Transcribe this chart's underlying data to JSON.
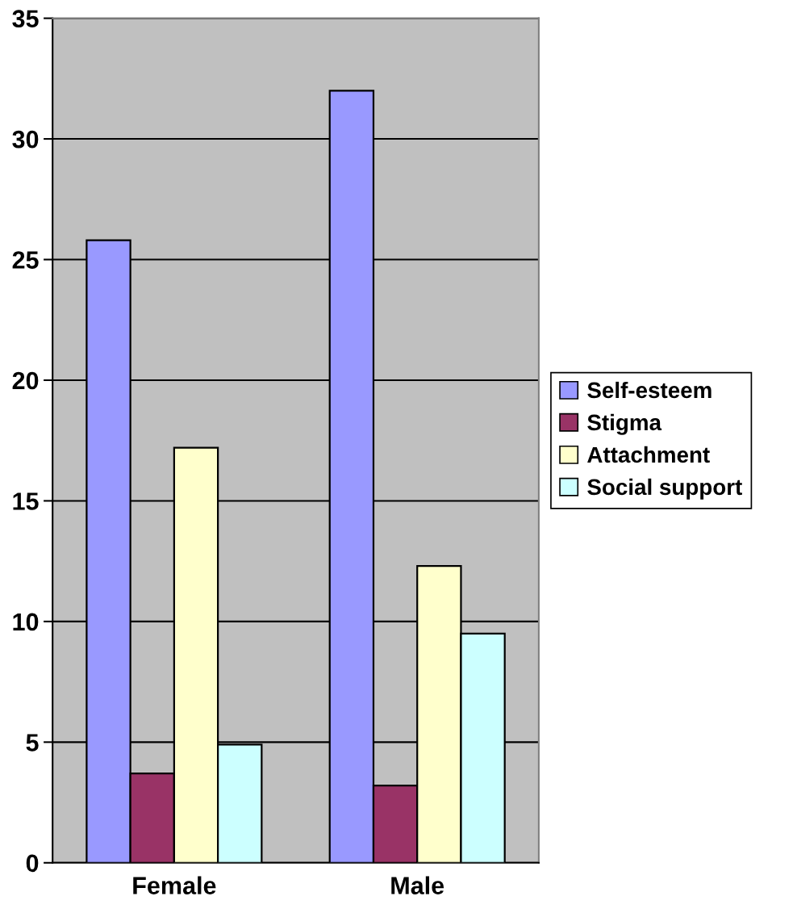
{
  "chart_data": {
    "type": "bar",
    "categories": [
      "Female",
      "Male"
    ],
    "series": [
      {
        "name": "Self-esteem",
        "color": "#9999ff",
        "values": [
          25.8,
          32.0
        ]
      },
      {
        "name": "Stigma",
        "color": "#993366",
        "values": [
          3.7,
          3.2
        ]
      },
      {
        "name": "Attachment",
        "color": "#ffffcc",
        "values": [
          17.2,
          12.3
        ]
      },
      {
        "name": "Social support",
        "color": "#ccffff",
        "values": [
          4.9,
          9.5
        ]
      }
    ],
    "ylim": [
      0,
      35
    ],
    "yticks": [
      0,
      5,
      10,
      15,
      20,
      25,
      30,
      35
    ],
    "grid": "y",
    "legend": "right"
  }
}
